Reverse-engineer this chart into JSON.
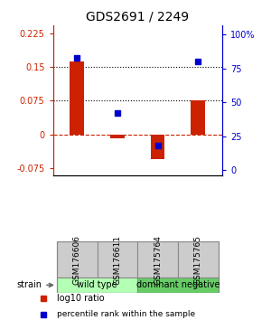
{
  "title": "GDS2691 / 2249",
  "samples": [
    "GSM176606",
    "GSM176611",
    "GSM175764",
    "GSM175765"
  ],
  "log10_ratio": [
    0.163,
    -0.008,
    -0.055,
    0.075
  ],
  "percentile_rank": [
    83,
    42,
    18,
    80
  ],
  "ylim_left": [
    -0.09,
    0.2417
  ],
  "ylim_right": [
    -3.75,
    106.67
  ],
  "yticks_left": [
    -0.075,
    0,
    0.075,
    0.15,
    0.225
  ],
  "yticks_right": [
    0,
    25,
    50,
    75,
    100
  ],
  "ytick_labels_left": [
    "-0.075",
    "0",
    "0.075",
    "0.15",
    "0.225"
  ],
  "ytick_labels_right": [
    "0",
    "25",
    "50",
    "75",
    "100%"
  ],
  "hlines_dotted": [
    0.075,
    0.15
  ],
  "hline_dashed": 0,
  "groups": [
    {
      "label": "wild type",
      "samples": [
        0,
        1
      ],
      "color": "#b3ffb3"
    },
    {
      "label": "dominant negative",
      "samples": [
        2,
        3
      ],
      "color": "#66cc66"
    }
  ],
  "bar_color": "#cc2200",
  "dot_color": "#0000cc",
  "bar_width": 0.35,
  "legend_red_label": "log10 ratio",
  "legend_blue_label": "percentile rank within the sample",
  "strain_label": "strain",
  "background_color": "#ffffff",
  "sample_cell_color": "#cccccc",
  "cell_border_color": "#888888"
}
